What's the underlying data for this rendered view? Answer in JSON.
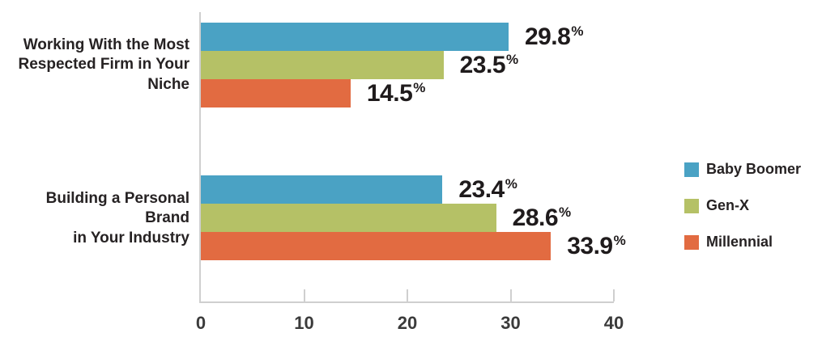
{
  "chart_data": {
    "type": "bar",
    "orientation": "horizontal",
    "title": "",
    "categories": [
      "Working With the Most Respected Firm in Your Niche",
      "Building a Personal Brand in Your Industry"
    ],
    "category_lines": [
      [
        "Working With the Most",
        "Respected Firm in Your Niche"
      ],
      [
        "Building a Personal Brand",
        "in Your Industry"
      ]
    ],
    "series": [
      {
        "name": "Baby Boomer",
        "color": "#4AA2C4",
        "values": [
          29.8,
          23.4
        ]
      },
      {
        "name": "Gen-X",
        "color": "#B5C166",
        "values": [
          23.5,
          28.6
        ]
      },
      {
        "name": "Millennial",
        "color": "#E26B41",
        "values": [
          14.5,
          33.9
        ]
      }
    ],
    "value_suffix": "%",
    "xticks": [
      0,
      10,
      20,
      30,
      40
    ],
    "xlim": [
      0,
      40
    ],
    "grid": false,
    "legend_position": "right",
    "colors": {
      "axis": "#CFCFCF",
      "text_dark": "#262223",
      "tick_label": "#3B3B3B",
      "value_label": "#1F1B1C"
    }
  }
}
